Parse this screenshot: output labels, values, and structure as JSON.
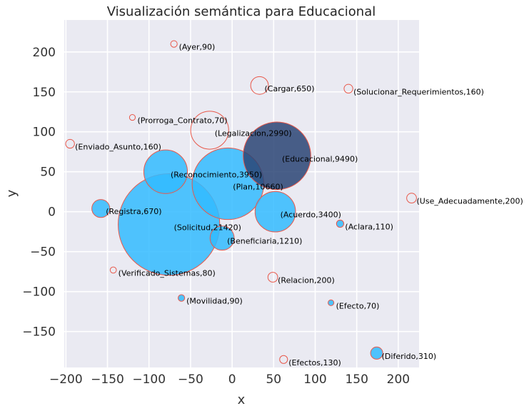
{
  "chart_data": {
    "type": "scatter",
    "title": "Visualización semántica para Educacional",
    "xlabel": "x",
    "ylabel": "y",
    "xlim": [
      -202,
      225
    ],
    "ylim": [
      -195,
      240
    ],
    "xticks": [
      -200,
      -150,
      -100,
      -50,
      0,
      50,
      100,
      150,
      200
    ],
    "yticks": [
      -150,
      -100,
      -50,
      0,
      50,
      100,
      150,
      200
    ],
    "xtick_labels": [
      "−200",
      "−150",
      "−100",
      "−50",
      "0",
      "50",
      "100",
      "150",
      "200"
    ],
    "ytick_labels": [
      "−150",
      "−100",
      "−50",
      "0",
      "50",
      "100",
      "150",
      "200"
    ],
    "grid": true,
    "colors": {
      "background": "#EAEAF2",
      "grid": "#FFFFFF",
      "fill": "#33BBFF",
      "highlight": "#2A4474",
      "edge": "#E8584A"
    },
    "points": [
      {
        "label": "(Ayer,90)",
        "x": -70,
        "y": 210,
        "value": 90,
        "filled": false
      },
      {
        "label": "(Cargar,650)",
        "x": 33,
        "y": 158,
        "value": 650,
        "filled": false
      },
      {
        "label": "(Solucionar_Requerimientos,160)",
        "x": 140,
        "y": 154,
        "value": 160,
        "filled": false
      },
      {
        "label": "(Prorroga_Contrato,70)",
        "x": -120,
        "y": 118,
        "value": 70,
        "filled": false
      },
      {
        "label": "(Legalizacion,2990)",
        "x": -27,
        "y": 102,
        "value": 2990,
        "filled": false
      },
      {
        "label": "(Enviado_Asunto,160)",
        "x": -195,
        "y": 85,
        "value": 160,
        "filled": false
      },
      {
        "label": "(Educacional,9490)",
        "x": 54,
        "y": 70,
        "value": 9490,
        "filled": true,
        "highlight": true
      },
      {
        "label": "(Reconocimiento,3950)",
        "x": -80,
        "y": 50,
        "value": 3950,
        "filled": true
      },
      {
        "label": "(Plan,10660)",
        "x": -5,
        "y": 35,
        "value": 10660,
        "filled": true
      },
      {
        "label": "(Use_Adecuadamente,200)",
        "x": 216,
        "y": 17,
        "value": 200,
        "filled": false
      },
      {
        "label": "(Registra,670)",
        "x": -158,
        "y": 4,
        "value": 670,
        "filled": true
      },
      {
        "label": "(Acuerdo,3400)",
        "x": 52,
        "y": 0,
        "value": 3400,
        "filled": true
      },
      {
        "label": "(Aclara,110)",
        "x": 130,
        "y": -15,
        "value": 110,
        "filled": true
      },
      {
        "label": "(Solicitud,21420)",
        "x": -76,
        "y": -16,
        "value": 21420,
        "filled": true
      },
      {
        "label": "(Beneficiaria,1210)",
        "x": -12,
        "y": -33,
        "value": 1210,
        "filled": true
      },
      {
        "label": "(Verificado_Sistemas,80)",
        "x": -143,
        "y": -73,
        "value": 80,
        "filled": false
      },
      {
        "label": "(Relacion,200)",
        "x": 49,
        "y": -82,
        "value": 200,
        "filled": false
      },
      {
        "label": "(Movilidad,90)",
        "x": -61,
        "y": -108,
        "value": 90,
        "filled": true
      },
      {
        "label": "(Efecto,70)",
        "x": 119,
        "y": -114,
        "value": 70,
        "filled": true
      },
      {
        "label": "(Diferido,310)",
        "x": 174,
        "y": -177,
        "value": 310,
        "filled": true
      },
      {
        "label": "(Efectos,130)",
        "x": 62,
        "y": -185,
        "value": 130,
        "filled": false
      }
    ]
  }
}
